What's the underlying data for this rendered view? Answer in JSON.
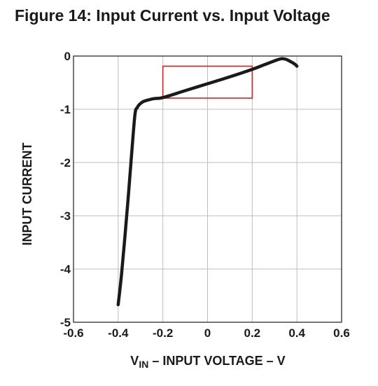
{
  "chart_data": {
    "type": "line",
    "title": "Figure 14:  Input Current vs. Input Voltage",
    "xlabel": {
      "prefix": "V",
      "subscript": "IN",
      "rest": " – INPUT VOLTAGE – V"
    },
    "ylabel": "INPUT CURRENT",
    "xlim": [
      -0.6,
      0.6
    ],
    "ylim": [
      -5,
      0
    ],
    "xticks": [
      -0.6,
      -0.4,
      -0.2,
      0,
      0.2,
      0.4,
      0.6
    ],
    "xtick_labels": [
      "-0.6",
      "-0.4",
      "-0.2",
      "0",
      "0.2",
      "0.4",
      "0.6"
    ],
    "yticks": [
      0,
      -1,
      -2,
      -3,
      -4,
      -5
    ],
    "ytick_labels": [
      "0",
      "-1",
      "-2",
      "-3",
      "-4",
      "-5"
    ],
    "grid": true,
    "series": [
      {
        "color": "#1a1a1a",
        "x": [
          -0.4,
          -0.385,
          -0.37,
          -0.355,
          -0.34,
          -0.325,
          -0.315,
          -0.305,
          -0.29,
          -0.27,
          -0.24,
          -0.2,
          -0.1,
          0,
          0.1,
          0.2,
          0.25,
          0.3,
          0.33,
          0.35,
          0.37,
          0.39,
          0.4
        ],
        "y": [
          -4.67,
          -4.1,
          -3.4,
          -2.65,
          -1.85,
          -1.1,
          -0.97,
          -0.91,
          -0.86,
          -0.83,
          -0.8,
          -0.78,
          -0.65,
          -0.52,
          -0.39,
          -0.25,
          -0.17,
          -0.09,
          -0.05,
          -0.06,
          -0.1,
          -0.15,
          -0.19
        ]
      }
    ],
    "annotations": [
      {
        "type": "rectangle",
        "color": "#cc2a2a",
        "x_range": [
          -0.2,
          0.2
        ],
        "y_range": [
          -0.79,
          -0.19
        ]
      }
    ]
  }
}
